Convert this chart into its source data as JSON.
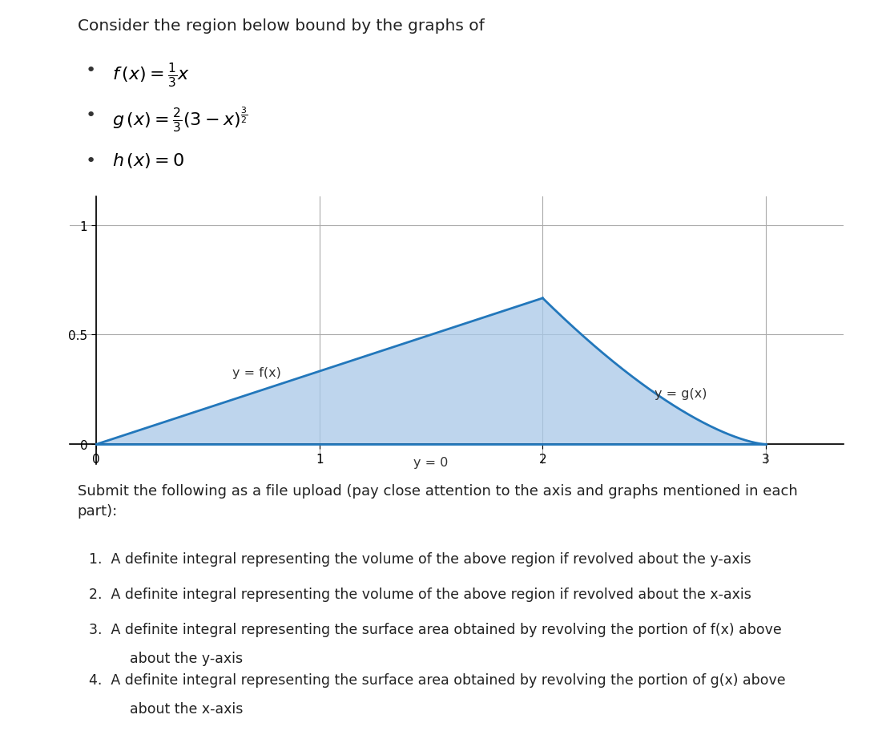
{
  "title_text": "Consider the region below bound by the graphs of",
  "xlim": [
    -0.12,
    3.35
  ],
  "ylim": [
    -0.09,
    1.13
  ],
  "xticks": [
    0,
    1,
    2,
    3
  ],
  "yticks": [
    0,
    0.5,
    1
  ],
  "ytick_labels": [
    "0",
    "0.5",
    "1"
  ],
  "fill_color": "#a8c8e8",
  "fill_alpha": 0.75,
  "line_color": "#2277bb",
  "line_width": 2.0,
  "label_fx": "y = f(x)",
  "label_gx": "y = g(x)",
  "label_hx": "y = 0",
  "grid_color": "#aaaaaa",
  "grid_linewidth": 0.8,
  "submit_text": "Submit the following as a file upload (pay close attention to the axis and graphs mentioned in each\npart):",
  "item1": "A definite integral representing the volume of the above region if revolved about the y-axis",
  "item2": "A definite integral representing the volume of the above region if revolved about the x-axis",
  "item3a": "A definite integral representing the surface area obtained by revolving the portion of f(x) above",
  "item3b": "about the y-axis",
  "item4a": "A definite integral representing the surface area obtained by revolving the portion of g(x) above",
  "item4b": "about the x-axis",
  "fig_width": 10.86,
  "fig_height": 9.28,
  "dpi": 100
}
